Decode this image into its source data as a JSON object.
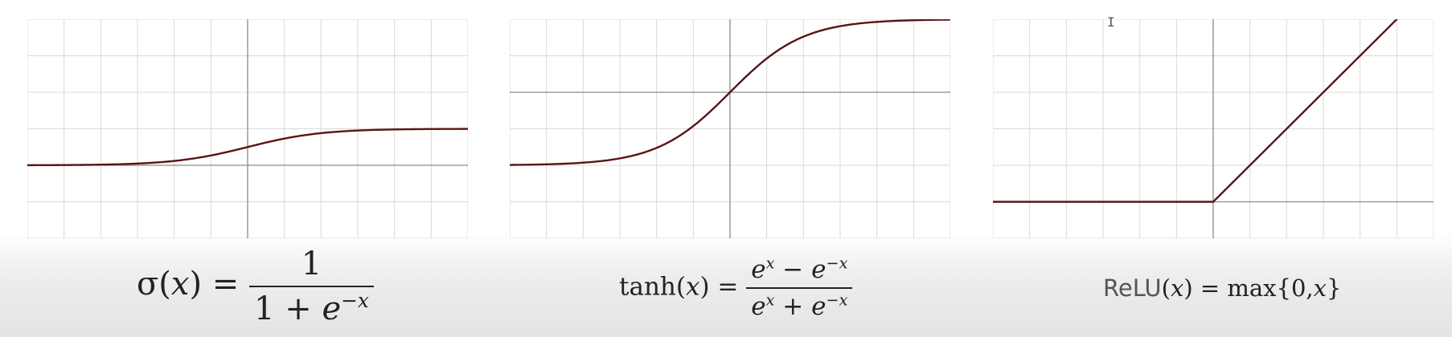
{
  "chart_data": [
    {
      "type": "line",
      "function": "sigmoid",
      "x": [
        -6,
        -5,
        -4,
        -3,
        -2,
        -1,
        0,
        1,
        2,
        3,
        4,
        5,
        6
      ],
      "y": [
        0.0025,
        0.0067,
        0.018,
        0.047,
        0.119,
        0.269,
        0.5,
        0.731,
        0.881,
        0.953,
        0.982,
        0.993,
        0.9975
      ],
      "xlim": [
        -6,
        6
      ],
      "ylim": [
        -2,
        4
      ],
      "grid": true,
      "color": "#5a1414"
    },
    {
      "type": "line",
      "function": "tanh",
      "x": [
        -3,
        -2.5,
        -2,
        -1.5,
        -1,
        -0.5,
        0,
        0.5,
        1,
        1.5,
        2,
        2.5,
        3
      ],
      "y": [
        -0.995,
        -0.987,
        -0.964,
        -0.905,
        -0.762,
        -0.462,
        0,
        0.462,
        0.762,
        0.905,
        0.964,
        0.987,
        0.995
      ],
      "xlim": [
        -3,
        3
      ],
      "ylim": [
        -2,
        1
      ],
      "grid": true,
      "color": "#5a1414"
    },
    {
      "type": "line",
      "function": "relu",
      "x": [
        -6,
        -4,
        -2,
        0,
        2,
        4,
        5
      ],
      "y": [
        0,
        0,
        0,
        0,
        2,
        4,
        5
      ],
      "xlim": [
        -6,
        6
      ],
      "ylim": [
        -1,
        5
      ],
      "grid": true,
      "color": "#5a1414"
    }
  ],
  "formulas": {
    "sigmoid": {
      "lhs": "σ(",
      "var": "x",
      "rhs": ") =",
      "num": "1",
      "den_a": "1 + ",
      "den_e": "e",
      "den_exp": "−x"
    },
    "tanh": {
      "lhs": "tanh(",
      "var": "x",
      "rhs": ") =",
      "num_e1": "e",
      "num_exp1": "x",
      "num_op": " − ",
      "num_e2": "e",
      "num_exp2": "−x",
      "den_e1": "e",
      "den_exp1": "x",
      "den_op": " + ",
      "den_e2": "e",
      "den_exp2": "−x"
    },
    "relu": {
      "name": "ReLU",
      "open": "(",
      "var": "x",
      "mid": ") = max{0,",
      "var2": "x",
      "close": "}"
    }
  },
  "colors": {
    "curve": "#5a1414",
    "grid": "#d9d9d9",
    "axis": "#8a8a8a"
  },
  "cursor_icon": "text-cursor-icon"
}
